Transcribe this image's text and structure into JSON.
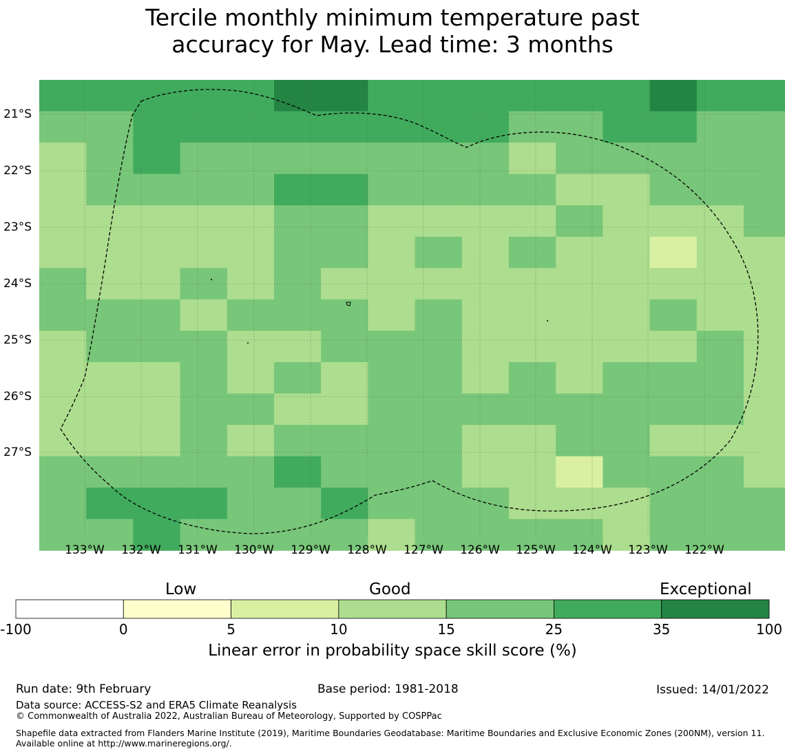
{
  "title_line1": "Tercile monthly minimum temperature past",
  "title_line2": "accuracy for May. Lead time: 3 months",
  "map": {
    "lat_labels": [
      "21°S",
      "22°S",
      "23°S",
      "24°S",
      "25°S",
      "26°S",
      "27°S"
    ],
    "lon_labels": [
      "133°W",
      "132°W",
      "131°W",
      "130°W",
      "129°W",
      "128°W",
      "127°W",
      "126°W",
      "125°W",
      "124°W",
      "123°W",
      "122°W"
    ],
    "grid": [
      [
        5,
        5,
        5,
        5,
        5,
        6,
        6,
        5,
        5,
        5,
        5,
        5,
        5,
        6,
        5,
        5
      ],
      [
        4,
        4,
        5,
        5,
        5,
        5,
        5,
        5,
        5,
        5,
        4,
        4,
        5,
        5,
        4,
        4
      ],
      [
        3,
        4,
        5,
        4,
        4,
        4,
        4,
        4,
        4,
        4,
        3,
        4,
        4,
        4,
        4,
        4
      ],
      [
        3,
        4,
        4,
        4,
        4,
        5,
        5,
        4,
        4,
        4,
        4,
        3,
        3,
        4,
        4,
        4
      ],
      [
        3,
        3,
        3,
        3,
        3,
        4,
        4,
        3,
        3,
        3,
        3,
        4,
        3,
        3,
        3,
        4
      ],
      [
        3,
        3,
        3,
        3,
        3,
        4,
        4,
        3,
        4,
        3,
        4,
        3,
        3,
        2,
        3,
        3
      ],
      [
        4,
        3,
        3,
        4,
        3,
        4,
        3,
        3,
        3,
        3,
        3,
        3,
        3,
        3,
        3,
        3
      ],
      [
        4,
        4,
        4,
        3,
        4,
        4,
        4,
        3,
        4,
        3,
        3,
        3,
        3,
        4,
        3,
        3
      ],
      [
        3,
        4,
        4,
        4,
        3,
        3,
        4,
        4,
        4,
        3,
        3,
        3,
        3,
        3,
        4,
        3
      ],
      [
        3,
        3,
        3,
        4,
        3,
        4,
        3,
        4,
        4,
        3,
        4,
        3,
        4,
        4,
        4,
        3
      ],
      [
        3,
        3,
        3,
        4,
        4,
        3,
        3,
        4,
        4,
        4,
        4,
        4,
        4,
        4,
        4,
        3
      ],
      [
        3,
        3,
        3,
        4,
        3,
        4,
        4,
        4,
        4,
        3,
        3,
        4,
        4,
        3,
        3,
        3
      ],
      [
        4,
        4,
        4,
        4,
        4,
        5,
        4,
        4,
        4,
        3,
        3,
        2,
        4,
        4,
        4,
        3
      ],
      [
        4,
        5,
        5,
        5,
        4,
        4,
        5,
        4,
        4,
        4,
        3,
        3,
        3,
        4,
        4,
        4
      ],
      [
        4,
        4,
        5,
        4,
        4,
        4,
        4,
        3,
        4,
        4,
        4,
        4,
        3,
        4,
        4,
        4
      ]
    ]
  },
  "legend": {
    "categories": [
      "Low",
      "Good",
      "Exceptional"
    ],
    "ticks": [
      "-100",
      "0",
      "5",
      "10",
      "15",
      "25",
      "35",
      "100"
    ],
    "colors": [
      "#ffffff",
      "#ffffcc",
      "#d9f0a3",
      "#addd8e",
      "#78c679",
      "#41ab5d",
      "#238443"
    ],
    "title": "Linear error in probability space skill score (%)"
  },
  "footer": {
    "run_date": "Run date: 9th February",
    "base_period": "Base period: 1981-2018",
    "issued": "Issued: 14/01/2022",
    "data_source": "Data source: ACCESS-S2 and ERA5 Climate Reanalysis",
    "copyright": "© Commonwealth of Australia 2022, Australian Bureau of Meteorology, Supported by COSPPac",
    "shapefile": "Shapefile data extracted from Flanders Marine Institute (2019), Maritime Boundaries Geodatabase: Maritime Boundaries and Exclusive Economic Zones (200NM), version 11. Available online at http://www.marineregions.org/."
  }
}
